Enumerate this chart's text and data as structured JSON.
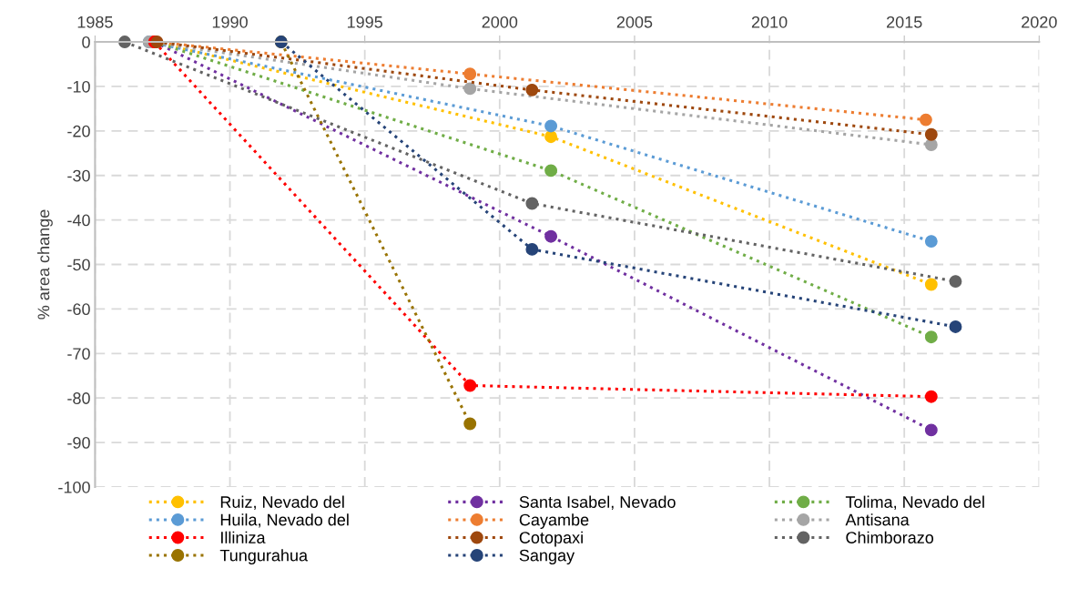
{
  "chart_data": {
    "type": "line",
    "ylabel": "% area change",
    "xlim": [
      1985,
      2020
    ],
    "xticks": [
      1985,
      1990,
      1995,
      2000,
      2005,
      2010,
      2015,
      2020
    ],
    "ylim": [
      -100,
      0
    ],
    "yticks": [
      -100,
      -90,
      -80,
      -70,
      -60,
      -50,
      -40,
      -30,
      -20,
      -10,
      0
    ],
    "grid": true,
    "legend": "bottom",
    "marker": "circle",
    "line_style": "dotted",
    "series": [
      {
        "name": "Ruiz, Nevado del",
        "color": "#ffc000",
        "x": [
          1987.2,
          2001.9,
          2016.0
        ],
        "values": [
          0,
          -21.3,
          -54.5
        ]
      },
      {
        "name": "Santa Isabel, Nevado",
        "color": "#7030a0",
        "x": [
          1987.2,
          2001.9,
          2016.0
        ],
        "values": [
          0,
          -43.7,
          -87.2
        ]
      },
      {
        "name": "Tolima, Nevado del",
        "color": "#70ad47",
        "x": [
          1987.2,
          2001.9,
          2016.0
        ],
        "values": [
          0,
          -28.9,
          -66.3
        ]
      },
      {
        "name": "Huila, Nevado del",
        "color": "#5b9bd5",
        "x": [
          1987.0,
          2001.9,
          2016.0
        ],
        "values": [
          0,
          -18.9,
          -44.8
        ]
      },
      {
        "name": "Cayambe",
        "color": "#ed7d31",
        "x": [
          1987.2,
          1998.9,
          2015.8
        ],
        "values": [
          0,
          -7.2,
          -17.5
        ]
      },
      {
        "name": "Antisana",
        "color": "#a5a5a5",
        "x": [
          1987.0,
          1998.9,
          2016.0
        ],
        "values": [
          0,
          -10.5,
          -23.1
        ]
      },
      {
        "name": "Illiniza",
        "color": "#ff0000",
        "x": [
          1987.2,
          1998.9,
          2016.0
        ],
        "values": [
          0,
          -77.2,
          -79.7
        ]
      },
      {
        "name": "Cotopaxi",
        "color": "#9e480e",
        "x": [
          1987.3,
          2001.2,
          2016.0
        ],
        "values": [
          0,
          -10.8,
          -20.8
        ]
      },
      {
        "name": "Chimborazo",
        "color": "#636363",
        "x": [
          1986.1,
          2001.2,
          2016.9
        ],
        "values": [
          0,
          -36.3,
          -53.8
        ]
      },
      {
        "name": "Tungurahua",
        "color": "#997300",
        "x": [
          1991.9,
          1998.9
        ],
        "values": [
          0,
          -85.8
        ]
      },
      {
        "name": "Sangay",
        "color": "#264478",
        "x": [
          1991.9,
          2001.2,
          2016.9
        ],
        "values": [
          0,
          -46.6,
          -64.0
        ]
      }
    ]
  }
}
